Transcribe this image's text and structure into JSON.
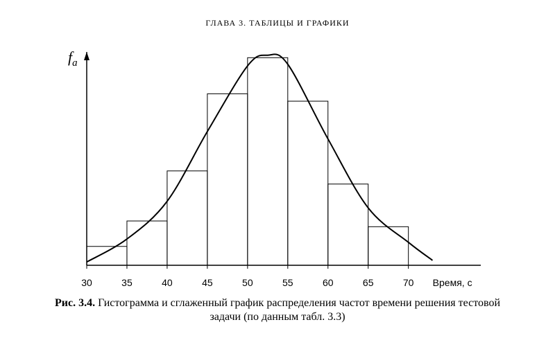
{
  "header": "ГЛАВА 3. ТАБЛИЦЫ И ГРАФИКИ",
  "chart_data": {
    "type": "histogram",
    "bins": [
      30,
      35,
      40,
      45,
      50,
      55,
      60,
      65,
      70
    ],
    "values": [
      2.3,
      5.4,
      11.5,
      20.9,
      25.3,
      20.0,
      9.9,
      4.7
    ],
    "curve": {
      "x": [
        30,
        35,
        40,
        45,
        50,
        52.5,
        55,
        60,
        65,
        70,
        73
      ],
      "y": [
        0.4,
        3.2,
        7.8,
        16.3,
        24.3,
        25.6,
        24.5,
        15.4,
        7.0,
        2.8,
        0.6
      ]
    },
    "xlim": [
      30,
      79
    ],
    "ylim": [
      0,
      26
    ],
    "xticks": [
      30,
      35,
      40,
      45,
      50,
      55,
      60,
      65,
      70
    ],
    "x_label": "Время, с",
    "y_label": {
      "main": "f",
      "sub": "a"
    },
    "color": "#000000"
  },
  "caption": {
    "label": "Рис. 3.4.",
    "text": "Гистограмма и сглаженный график распределения частот времени решения тестовой задачи (по данным табл. 3.3)"
  }
}
